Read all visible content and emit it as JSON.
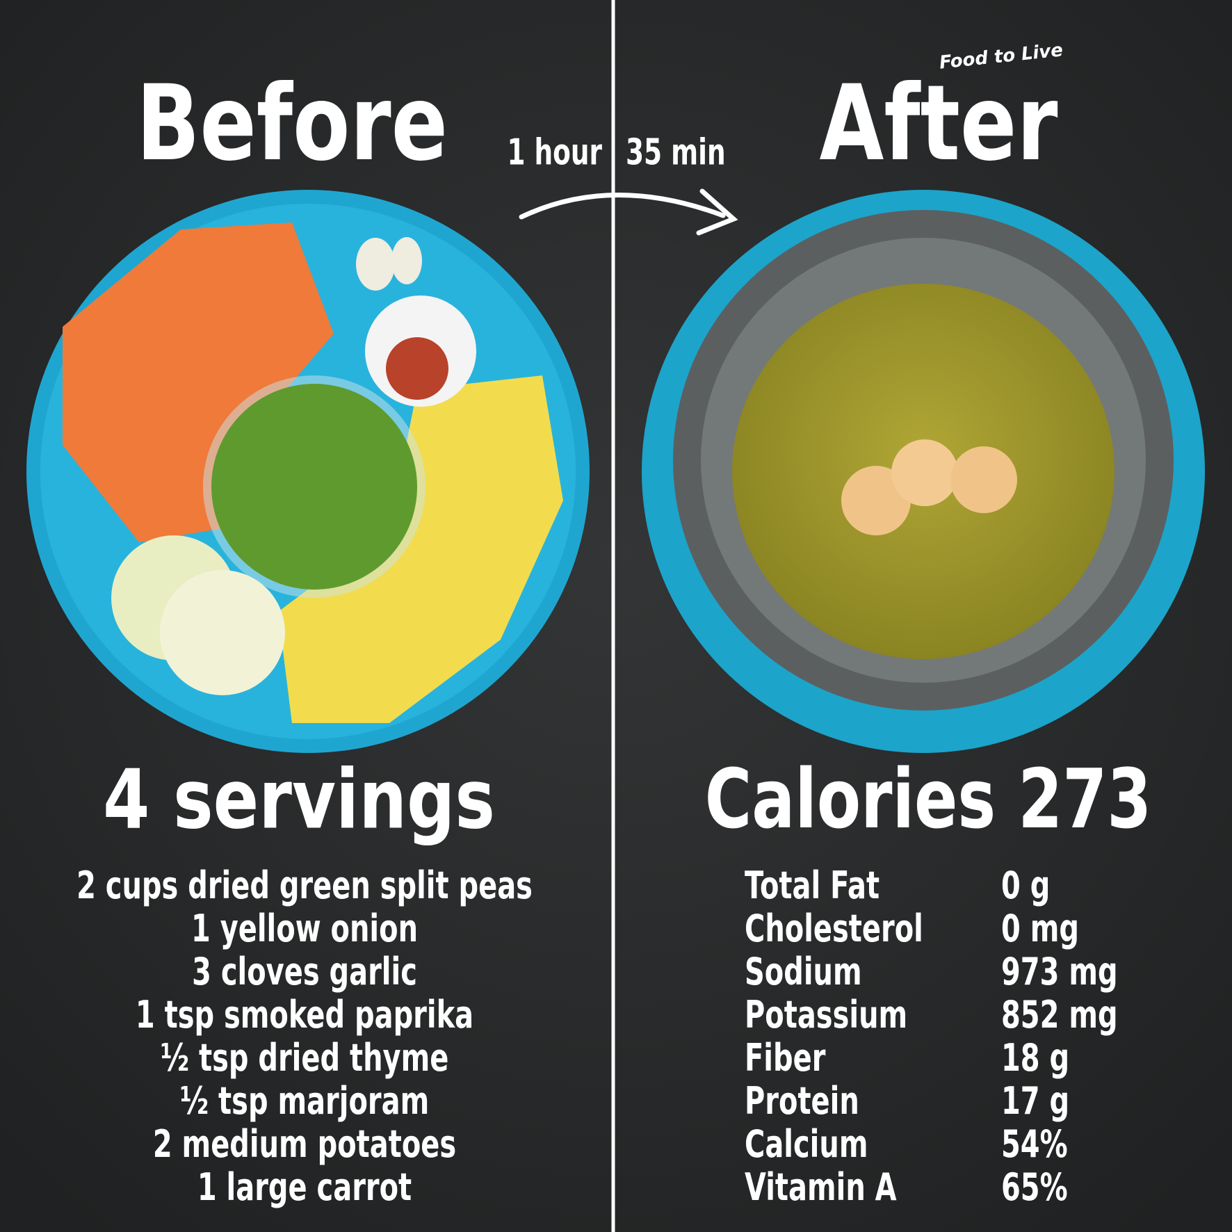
{
  "brand": "Food to Live",
  "before": {
    "title": "Before",
    "servings": "4 servings",
    "ingredients": [
      "2 cups dried green split peas",
      "1 yellow onion",
      "3 cloves garlic",
      "1 tsp smoked paprika",
      "½ tsp dried thyme",
      "½ tsp marjoram",
      "2 medium potatoes",
      "1 large carrot"
    ]
  },
  "time": {
    "hours": "1 hour",
    "minutes": "35 min"
  },
  "after": {
    "title": "After",
    "calories": "Calories 273",
    "nutrients": [
      {
        "name": "Total Fat",
        "amount": "0 g"
      },
      {
        "name": "Cholesterol",
        "amount": "0 mg"
      },
      {
        "name": "Sodium",
        "amount": "973 mg"
      },
      {
        "name": "Potassium",
        "amount": "852 mg"
      },
      {
        "name": "Fiber",
        "amount": "18 g"
      },
      {
        "name": "Protein",
        "amount": "17 g"
      },
      {
        "name": "Calcium",
        "amount": "54%"
      },
      {
        "name": "Vitamin A",
        "amount": "65%"
      }
    ]
  }
}
